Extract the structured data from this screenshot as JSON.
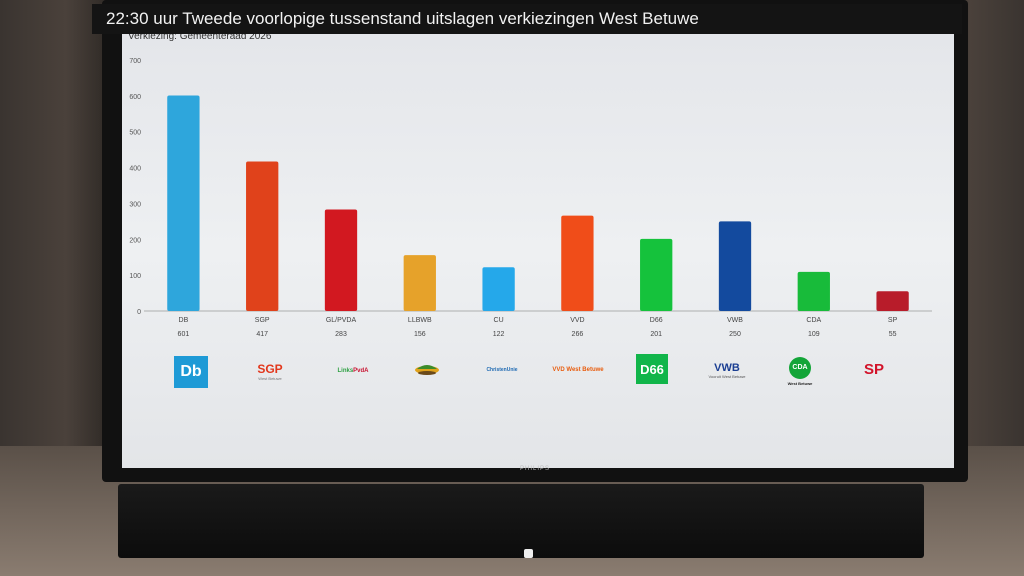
{
  "header": {
    "title": "22:30 uur Tweede voorlopige tussenstand uitslagen verkiezingen West Betuwe",
    "subtitle": "Verkiezing: Gemeenteraad 2026"
  },
  "tv": {
    "brand": "PHILIPS"
  },
  "chart_data": {
    "type": "bar",
    "categories": [
      "DB",
      "SGP",
      "GL/PVDA",
      "LLBWB",
      "CU",
      "VVD",
      "D66",
      "VWB",
      "CDA",
      "SP"
    ],
    "values": [
      601,
      417,
      283,
      156,
      122,
      266,
      201,
      250,
      109,
      55
    ],
    "colors": [
      "#2ea6dc",
      "#e0421b",
      "#d21820",
      "#e6a22a",
      "#25a8ea",
      "#f04d19",
      "#15c23c",
      "#134a9e",
      "#18bb3a",
      "#b81c2a"
    ],
    "ylim": [
      0,
      700
    ],
    "yticks": [
      0,
      100,
      200,
      300,
      400,
      500,
      600,
      700
    ],
    "grid": false,
    "legend": "none",
    "xlabel": "",
    "ylabel": ""
  },
  "logos": {
    "db": "Db",
    "sgp": "SGP",
    "sgp_sub": "West Betuwe",
    "gl_a": "Links",
    "gl_b": "PvdA",
    "cu": "ChristenUnie",
    "vvd": "VVD West Betuwe",
    "d66": "D66",
    "vwb": "VWB",
    "vwb_sub": "Vooruit West Betuwe",
    "cda": "CDA",
    "cda_sub": "West Betuwe",
    "sp": "SP"
  }
}
